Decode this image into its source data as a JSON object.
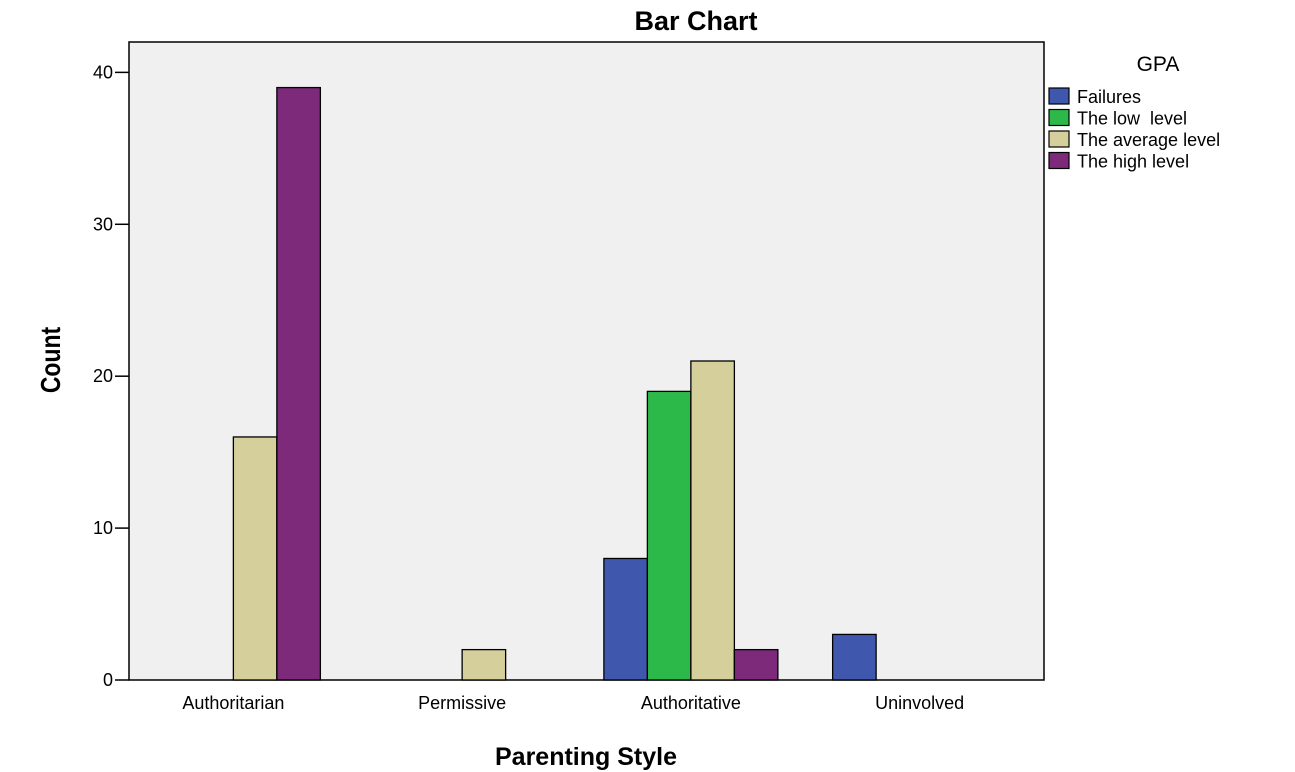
{
  "chart_data": {
    "type": "bar",
    "title": "Bar Chart",
    "xlabel": "Parenting Style",
    "ylabel": "Count",
    "categories": [
      "Authoritarian",
      "Permissive",
      "Authoritative",
      "Uninvolved"
    ],
    "ylim": [
      0,
      42
    ],
    "yticks": [
      0,
      10,
      20,
      30,
      40
    ],
    "grid": false,
    "legend": {
      "title": "GPA",
      "placement": "right"
    },
    "series": [
      {
        "name": "Failures",
        "color": "#3f58ad",
        "values": [
          0,
          0,
          8,
          3
        ]
      },
      {
        "name": "The low  level",
        "color": "#2db84a",
        "values": [
          0,
          0,
          19,
          0
        ]
      },
      {
        "name": "The average level",
        "color": "#d5cf9b",
        "values": [
          16,
          2,
          21,
          0
        ]
      },
      {
        "name": "The high level",
        "color": "#7d2a7b",
        "values": [
          39,
          0,
          2,
          0
        ]
      }
    ],
    "plot_background": "#f0f0f0"
  }
}
